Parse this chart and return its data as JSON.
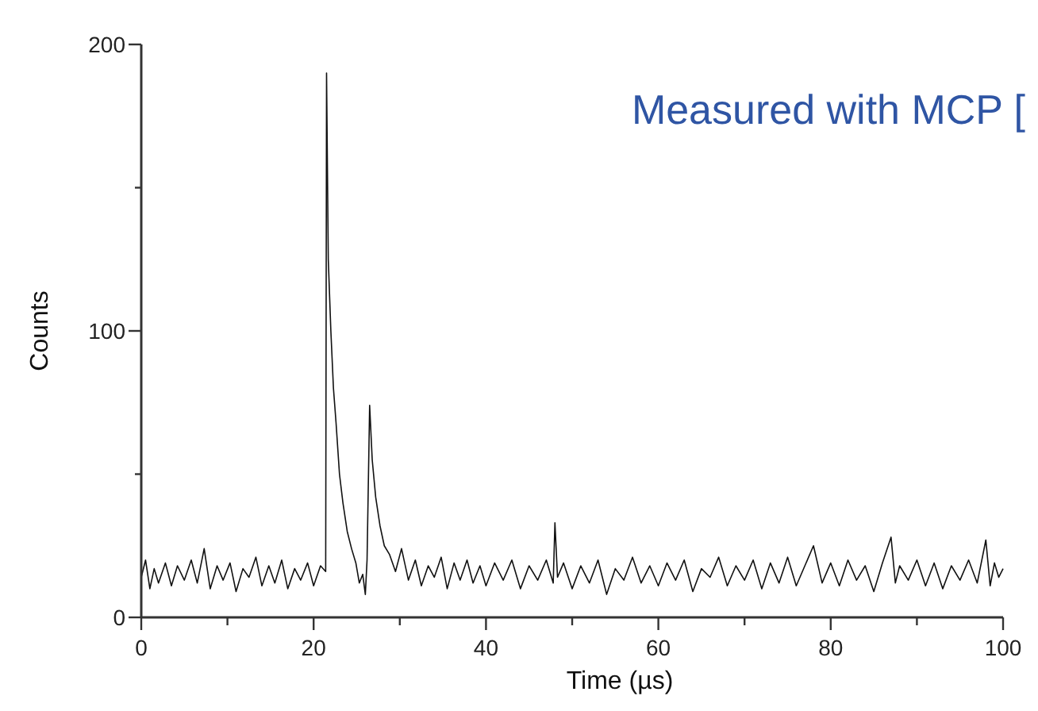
{
  "chart_data": {
    "type": "line",
    "xlabel": "Time (µs)",
    "ylabel": "Counts",
    "annotations": [
      "Measured with MCP ["
    ],
    "xlim": [
      0,
      100
    ],
    "xticks": [
      0,
      {
        "value": 10,
        "label": null
      },
      20,
      {
        "value": 30,
        "label": null
      },
      40,
      {
        "value": 50,
        "label": null
      },
      60,
      {
        "value": 70,
        "label": null
      },
      80,
      {
        "value": 90,
        "label": null
      },
      100
    ],
    "ylim": [
      0,
      200
    ],
    "yticks": [
      0,
      {
        "value": 50,
        "label": null
      },
      100,
      {
        "value": 150,
        "label": null
      },
      200
    ],
    "grid": false,
    "marker": "none",
    "line_style": "solid",
    "series": [
      {
        "color": "#111111",
        "x": [
          0,
          0.5,
          1,
          1.5,
          2,
          2.8,
          3.5,
          4.2,
          5,
          5.8,
          6.5,
          7.3,
          8,
          8.8,
          9.5,
          10.3,
          11,
          11.8,
          12.5,
          13.3,
          14,
          14.8,
          15.5,
          16.3,
          17,
          17.8,
          18.5,
          19.3,
          20,
          20.8,
          21.4,
          21.5,
          21.7,
          22,
          22.3,
          22.6,
          23,
          23.4,
          23.9,
          24.4,
          24.9,
          25.3,
          25.7,
          26,
          26.2,
          26.5,
          26.8,
          27.2,
          27.7,
          28.2,
          28.8,
          29.5,
          30.2,
          31,
          31.8,
          32.5,
          33.3,
          34,
          34.8,
          35.5,
          36.3,
          37,
          37.8,
          38.5,
          39.3,
          40,
          41,
          42,
          43,
          44,
          45,
          46,
          47,
          47.8,
          48,
          48.3,
          49,
          50,
          51,
          52,
          53,
          54,
          55,
          56,
          57,
          58,
          59,
          60,
          61,
          62,
          63,
          64,
          65,
          66,
          67,
          68,
          69,
          70,
          71,
          72,
          73,
          74,
          75,
          76,
          77,
          78,
          79,
          80,
          81,
          82,
          83,
          84,
          85,
          86,
          87,
          87.5,
          88,
          89,
          90,
          91,
          92,
          93,
          94,
          95,
          96,
          97,
          98,
          98.5,
          99,
          99.5,
          100
        ],
        "values": [
          14,
          20,
          10,
          17,
          12,
          19,
          11,
          18,
          13,
          20,
          12,
          24,
          10,
          18,
          13,
          19,
          9,
          17,
          14,
          21,
          11,
          18,
          12,
          20,
          10,
          17,
          13,
          19,
          11,
          18,
          16,
          190,
          125,
          100,
          80,
          68,
          50,
          40,
          30,
          24,
          19,
          12,
          15,
          8,
          20,
          74,
          55,
          42,
          32,
          25,
          22,
          16,
          24,
          13,
          20,
          11,
          18,
          14,
          21,
          10,
          19,
          13,
          20,
          12,
          18,
          11,
          19,
          13,
          20,
          10,
          18,
          13,
          20,
          12,
          33,
          14,
          19,
          10,
          18,
          12,
          20,
          8,
          17,
          13,
          21,
          12,
          18,
          11,
          19,
          13,
          20,
          9,
          17,
          14,
          21,
          11,
          18,
          13,
          20,
          10,
          19,
          12,
          21,
          11,
          18,
          25,
          12,
          19,
          11,
          20,
          13,
          18,
          9,
          19,
          28,
          12,
          18,
          13,
          20,
          11,
          19,
          10,
          18,
          13,
          20,
          12,
          27,
          11,
          19,
          14,
          17
        ]
      }
    ]
  }
}
